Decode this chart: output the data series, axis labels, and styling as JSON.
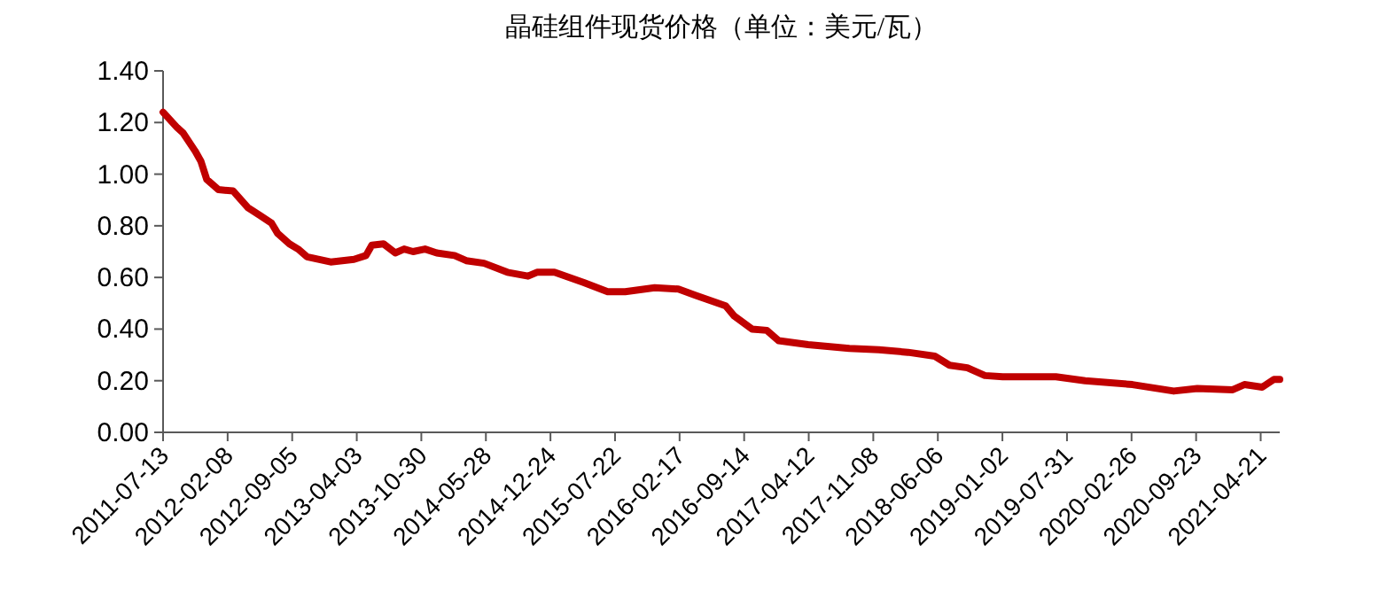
{
  "chart_data": {
    "type": "line",
    "title": "晶硅组件现货价格（单位：美元/瓦）",
    "x": [
      "2011-07-13",
      "2011-08-28",
      "2011-09-16",
      "2011-10-25",
      "2011-11-13",
      "2011-12-02",
      "2012-01-09",
      "2012-02-26",
      "2012-04-14",
      "2012-05-23",
      "2012-06-30",
      "2012-07-20",
      "2012-08-27",
      "2012-09-24",
      "2012-10-23",
      "2013-01-08",
      "2013-03-25",
      "2013-05-03",
      "2013-05-22",
      "2013-06-29",
      "2013-08-06",
      "2013-09-04",
      "2013-10-03",
      "2013-11-11",
      "2013-12-19",
      "2014-02-15",
      "2014-03-25",
      "2014-05-22",
      "2014-08-06",
      "2014-10-12",
      "2014-11-10",
      "2015-01-06",
      "2015-04-12",
      "2015-06-28",
      "2015-08-24",
      "2015-11-28",
      "2016-02-13",
      "2016-04-10",
      "2016-07-16",
      "2016-08-13",
      "2016-10-10",
      "2016-11-27",
      "2017-01-04",
      "2017-04-10",
      "2017-08-22",
      "2017-11-26",
      "2018-03-01",
      "2018-05-27",
      "2018-07-14",
      "2018-09-10",
      "2018-11-06",
      "2019-01-03",
      "2019-03-21",
      "2019-06-25",
      "2019-09-28",
      "2020-02-29",
      "2020-07-12",
      "2020-09-27",
      "2021-01-20",
      "2021-02-27",
      "2021-04-26",
      "2021-06-03",
      "2021-06-22"
    ],
    "series": [
      {
        "color": "#c00000",
        "values": [
          1.24,
          1.18,
          1.16,
          1.09,
          1.05,
          0.98,
          0.94,
          0.935,
          0.87,
          0.84,
          0.81,
          0.77,
          0.73,
          0.71,
          0.68,
          0.66,
          0.67,
          0.685,
          0.725,
          0.73,
          0.695,
          0.71,
          0.7,
          0.71,
          0.695,
          0.685,
          0.665,
          0.655,
          0.62,
          0.605,
          0.62,
          0.62,
          0.58,
          0.545,
          0.545,
          0.56,
          0.555,
          0.53,
          0.49,
          0.45,
          0.4,
          0.395,
          0.355,
          0.34,
          0.325,
          0.32,
          0.31,
          0.295,
          0.26,
          0.25,
          0.22,
          0.215,
          0.215,
          0.215,
          0.2,
          0.185,
          0.16,
          0.17,
          0.165,
          0.185,
          0.175,
          0.205,
          0.205
        ]
      }
    ],
    "xlim": [
      "2011-07-13",
      "2021-06-22"
    ],
    "xticks": [
      "2011-07-13",
      "2012-02-08",
      "2012-09-05",
      "2013-04-03",
      "2013-10-30",
      "2014-05-28",
      "2014-12-24",
      "2015-07-22",
      "2016-02-17",
      "2016-09-14",
      "2017-04-12",
      "2017-11-08",
      "2018-06-06",
      "2019-01-02",
      "2019-07-31",
      "2020-02-26",
      "2020-09-23",
      "2021-04-21"
    ],
    "ylim": [
      0,
      1.4
    ],
    "yticks": [
      {
        "value": 0,
        "label": "0.00"
      },
      {
        "value": 0.2,
        "label": "0.20"
      },
      {
        "value": 0.4,
        "label": "0.40"
      },
      {
        "value": 0.6,
        "label": "0.60"
      },
      {
        "value": 0.8,
        "label": "0.80"
      },
      {
        "value": 1.0,
        "label": "1.00"
      },
      {
        "value": 1.2,
        "label": "1.20"
      },
      {
        "value": 1.4,
        "label": "1.40"
      }
    ],
    "grid": false,
    "marker": "none",
    "line_style": "solid"
  }
}
